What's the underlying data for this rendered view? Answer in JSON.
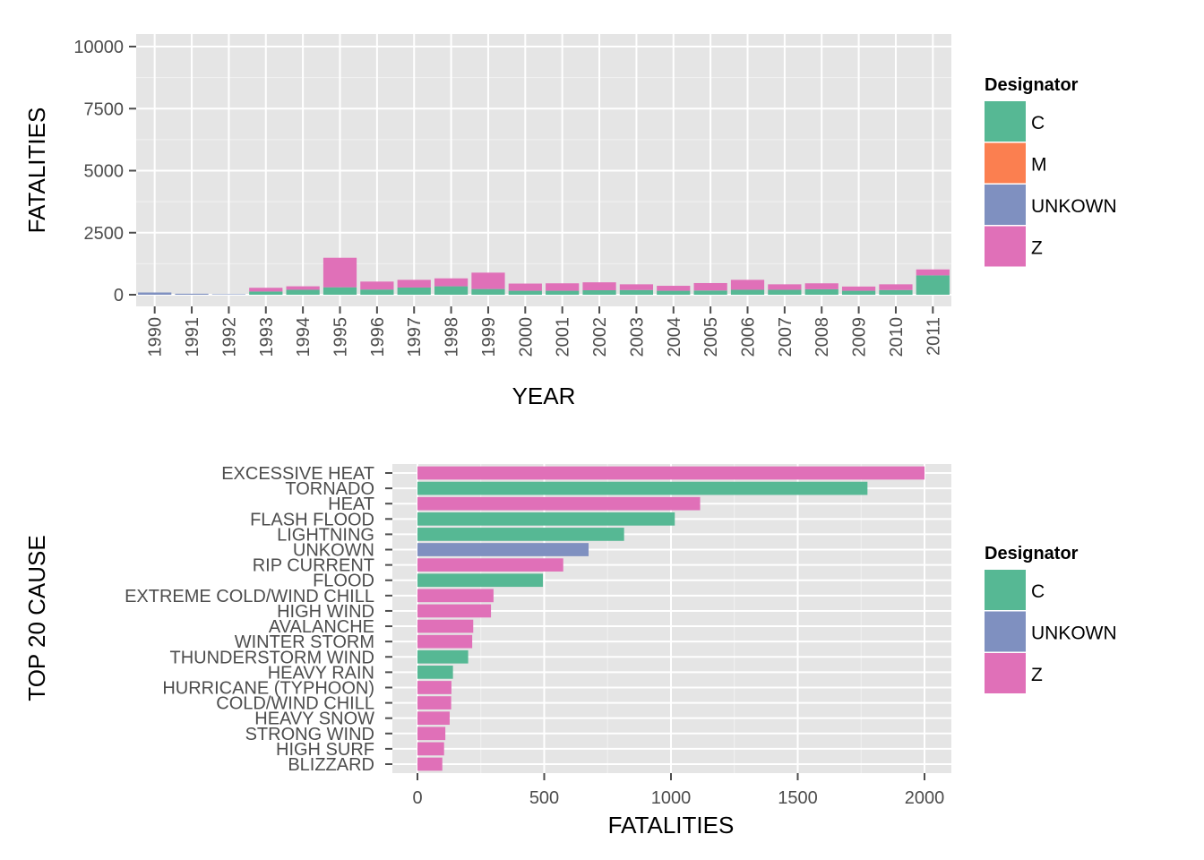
{
  "chart_data": [
    {
      "type": "bar",
      "stacked": true,
      "orientation": "vertical",
      "xlabel": "YEAR",
      "ylabel": "FATALITIES",
      "ylim": [
        0,
        10000
      ],
      "yticks": [
        "0",
        "2500",
        "5000",
        "7500",
        "10000"
      ],
      "grid": true,
      "legend": {
        "title": "Designator",
        "position": "right"
      },
      "categories": [
        "1990",
        "1991",
        "1992",
        "1993",
        "1994",
        "1995",
        "1996",
        "1997",
        "1998",
        "1999",
        "2000",
        "2001",
        "2002",
        "2003",
        "2004",
        "2005",
        "2006",
        "2007",
        "2008",
        "2009",
        "2010",
        "2011"
      ],
      "series": [
        {
          "name": "C",
          "color": "#56b894",
          "values": [
            0,
            0,
            0,
            130,
            200,
            300,
            210,
            290,
            340,
            230,
            160,
            160,
            180,
            190,
            160,
            170,
            200,
            200,
            220,
            160,
            190,
            780
          ]
        },
        {
          "name": "M",
          "color": "#fb7f50",
          "values": [
            0,
            0,
            0,
            0,
            0,
            0,
            0,
            0,
            0,
            0,
            0,
            0,
            0,
            0,
            0,
            0,
            0,
            0,
            0,
            0,
            0,
            0
          ]
        },
        {
          "name": "UNKOWN",
          "color": "#7f90c0",
          "values": [
            90,
            40,
            20,
            0,
            0,
            0,
            0,
            0,
            0,
            0,
            0,
            0,
            0,
            0,
            0,
            0,
            0,
            0,
            0,
            0,
            0,
            0
          ]
        },
        {
          "name": "Z",
          "color": "#e070b8",
          "values": [
            0,
            0,
            0,
            150,
            140,
            1190,
            320,
            310,
            320,
            660,
            290,
            300,
            320,
            230,
            200,
            300,
            400,
            220,
            240,
            170,
            230,
            240
          ]
        }
      ]
    },
    {
      "type": "bar",
      "orientation": "horizontal",
      "xlabel": "FATALITIES",
      "ylabel": "TOP 20 CAUSE",
      "xlim": [
        0,
        2000
      ],
      "xticks": [
        "0",
        "500",
        "1000",
        "1500",
        "2000"
      ],
      "grid": true,
      "legend": {
        "title": "Designator",
        "position": "right"
      },
      "legend_items": [
        {
          "name": "C",
          "color": "#56b894"
        },
        {
          "name": "UNKOWN",
          "color": "#7f90c0"
        },
        {
          "name": "Z",
          "color": "#e070b8"
        }
      ],
      "categories": [
        "EXCESSIVE HEAT",
        "TORNADO",
        "HEAT",
        "FLASH FLOOD",
        "LIGHTNING",
        "UNKOWN",
        "RIP CURRENT",
        "FLOOD",
        "EXTREME COLD/WIND CHILL",
        "HIGH WIND",
        "AVALANCHE",
        "WINTER STORM",
        "THUNDERSTORM WIND",
        "HEAVY RAIN",
        "HURRICANE (TYPHOON)",
        "COLD/WIND CHILL",
        "HEAVY SNOW",
        "STRONG WIND",
        "HIGH SURF",
        "BLIZZARD"
      ],
      "values": [
        2000,
        1775,
        1115,
        1015,
        815,
        675,
        575,
        495,
        300,
        290,
        220,
        216,
        200,
        140,
        134,
        133,
        127,
        110,
        105,
        98
      ],
      "designators": [
        "Z",
        "C",
        "Z",
        "C",
        "C",
        "UNKOWN",
        "Z",
        "C",
        "Z",
        "Z",
        "Z",
        "Z",
        "C",
        "C",
        "Z",
        "Z",
        "Z",
        "Z",
        "Z",
        "Z"
      ],
      "colors": {
        "C": "#56b894",
        "UNKOWN": "#7f90c0",
        "Z": "#e070b8"
      }
    }
  ]
}
